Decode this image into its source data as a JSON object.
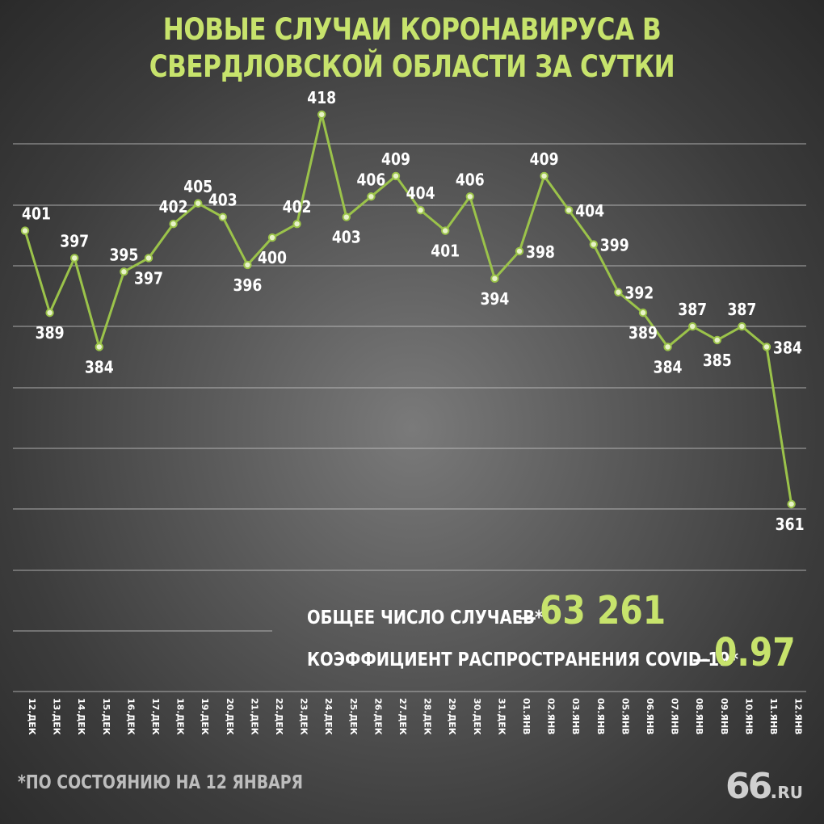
{
  "title": "НОВЫЕ СЛУЧАИ КОРОНАВИРУСА В СВЕРДЛОВСКОЙ ОБЛАСТИ ЗА СУТКИ",
  "chart_data": {
    "type": "line",
    "title": "НОВЫЕ СЛУЧАИ КОРОНАВИРУСА В СВЕРДЛОВСКОЙ ОБЛАСТИ ЗА СУТКИ",
    "categories": [
      "12.ДЕК",
      "13.ДЕК",
      "14.ДЕК",
      "15.ДЕК",
      "16.ДЕК",
      "17.ДЕК",
      "18.ДЕК",
      "19.ДЕК",
      "20.ДЕК",
      "21.ДЕК",
      "22.ДЕК",
      "23.ДЕК",
      "24.ДЕК",
      "25.ДЕК",
      "26.ДЕК",
      "27.ДЕК",
      "28.ДЕК",
      "29.ДЕК",
      "30.ДЕК",
      "31.ДЕК",
      "01.ЯНВ",
      "02.ЯНВ",
      "03.ЯНВ",
      "04.ЯНВ",
      "05.ЯНВ",
      "06.ЯНВ",
      "07.ЯНВ",
      "08.ЯНВ",
      "09.ЯНВ",
      "10.ЯНВ",
      "11.ЯНВ",
      "12.ЯНВ"
    ],
    "values": [
      401,
      389,
      397,
      384,
      395,
      397,
      402,
      405,
      403,
      396,
      400,
      402,
      418,
      403,
      406,
      409,
      404,
      401,
      406,
      394,
      398,
      409,
      404,
      399,
      392,
      389,
      384,
      387,
      385,
      387,
      384,
      361
    ],
    "label_position": [
      "above",
      "below",
      "above",
      "below",
      "above",
      "below",
      "above",
      "above",
      "above",
      "below",
      "below",
      "above",
      "above",
      "below",
      "above",
      "above",
      "above",
      "below",
      "above",
      "below",
      "right",
      "above",
      "right",
      "right",
      "right",
      "below",
      "below",
      "above",
      "below",
      "above",
      "right",
      "below"
    ],
    "ylim": [
      350,
      420
    ],
    "grid": true,
    "line_color": "#9bc34a",
    "label_color": "#ffffff"
  },
  "stats": {
    "total_label": "ОБЩЕЕ ЧИСЛО СЛУЧАЕВ*",
    "total_dash": "—",
    "total_value": "63 261",
    "coef_label": "КОЭФФИЦИЕНТ РАСПРОСТРАНЕНИЯ COVID-19*",
    "coef_dash": "—",
    "coef_value": "0.97"
  },
  "footnote": "*ПО СОСТОЯНИЮ НА 12 ЯНВАРЯ",
  "logo": {
    "main": "66",
    "dot": ".",
    "suffix": "RU"
  },
  "colors": {
    "accent": "#c7e36c",
    "text": "#ffffff",
    "grid": "#cfcfcf",
    "background": "#4a4a4a"
  }
}
